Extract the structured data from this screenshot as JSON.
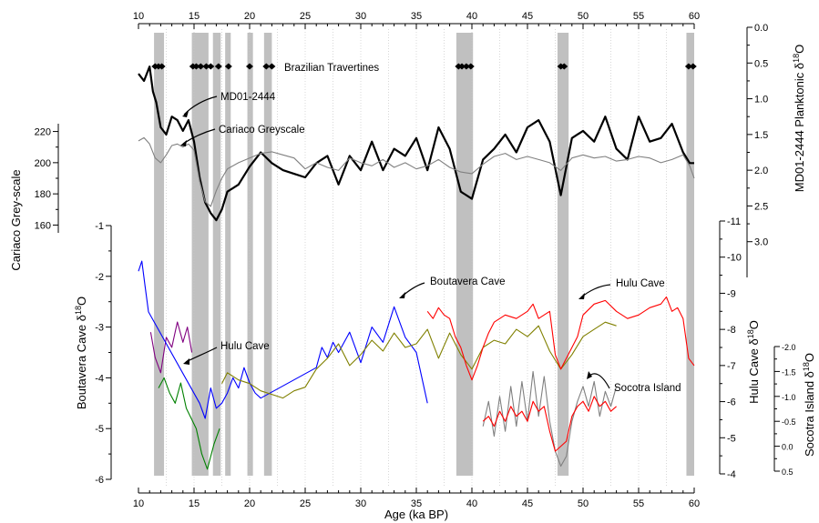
{
  "chart_data": {
    "type": "line",
    "x_axis": {
      "label": "Age (ka BP)",
      "range": [
        10,
        60
      ],
      "ticks": [
        "10",
        "15",
        "20",
        "25",
        "30",
        "35",
        "40",
        "45",
        "50",
        "55",
        "60"
      ]
    },
    "shaded_intervals": [
      [
        11.4,
        12.3
      ],
      [
        14.8,
        16.3
      ],
      [
        16.7,
        17.4
      ],
      [
        17.8,
        18.3
      ],
      [
        19.8,
        20.3
      ],
      [
        21.3,
        22.0
      ],
      [
        38.6,
        40.1
      ],
      [
        47.7,
        48.7
      ],
      [
        59.3,
        60.0
      ]
    ],
    "axes": {
      "cariaco": {
        "label": "Cariaco Grey-scale",
        "range": [
          155,
          225
        ],
        "ticks": [
          "160",
          "180",
          "200",
          "220"
        ]
      },
      "md01": {
        "label": "MD01-2444 Planktonic δ18O",
        "label_main": "MD01-2444 Planktonic δ",
        "label_sup": "18",
        "label_tail": "O",
        "range": [
          0.0,
          3.5
        ],
        "reversed": true,
        "ticks": [
          "0.0",
          "0.5",
          "1.0",
          "1.5",
          "2.0",
          "2.5",
          "3.0"
        ]
      },
      "boutavera": {
        "label": "Boutavera Cave δ18O",
        "label_main": "Boutavera Cave δ",
        "label_sup": "18",
        "label_tail": "O",
        "range": [
          -6,
          -1
        ],
        "ticks": [
          "-1",
          "-2",
          "-3",
          "-4",
          "-5",
          "-6"
        ]
      },
      "hulu": {
        "label": "Hulu Cave δ18O",
        "label_main": "Hulu Cave δ",
        "label_sup": "18",
        "label_tail": "O",
        "range": [
          -11,
          -4
        ],
        "reversed": true,
        "ticks": [
          "-11",
          "-10",
          "-9",
          "-8",
          "-7",
          "-6",
          "-5",
          "-4"
        ]
      },
      "socotra": {
        "label": "Socotra Island δ18O",
        "label_main": "Socotra Island δ",
        "label_sup": "18",
        "label_tail": "O",
        "range": [
          -2.0,
          0.5
        ],
        "reversed": true,
        "ticks": [
          "-2.0",
          "-1.5",
          "-1.0",
          "-0.5",
          "0.0",
          "0.5"
        ]
      }
    },
    "series": [
      {
        "name": "MD01-2444",
        "color": "#000000",
        "axis": "md01",
        "x": [
          10,
          10.5,
          11,
          11.3,
          11.6,
          12,
          12.5,
          13,
          13.5,
          14,
          14.5,
          15,
          15.5,
          16,
          16.5,
          17,
          17.5,
          18,
          19,
          20,
          21,
          22,
          23,
          24,
          25,
          26,
          27,
          28,
          29,
          30,
          31,
          32,
          33,
          34,
          35,
          36,
          37,
          38,
          39,
          40,
          41,
          42,
          43,
          44,
          45,
          46,
          47,
          48,
          49,
          50,
          51,
          52,
          53,
          54,
          55,
          56,
          57,
          58,
          59,
          59.6,
          60
        ],
        "values": [
          0.65,
          0.75,
          0.55,
          0.9,
          1.05,
          1.4,
          1.5,
          1.25,
          1.3,
          1.45,
          1.3,
          1.6,
          2.1,
          2.45,
          2.6,
          2.7,
          2.55,
          2.3,
          2.2,
          1.95,
          1.75,
          1.9,
          2.0,
          2.05,
          2.1,
          1.9,
          1.8,
          2.2,
          1.8,
          2.0,
          1.6,
          2.0,
          1.7,
          1.8,
          1.55,
          2.0,
          1.4,
          1.7,
          2.3,
          2.4,
          1.85,
          1.7,
          1.5,
          1.75,
          1.4,
          1.3,
          1.6,
          2.35,
          1.55,
          1.45,
          1.6,
          1.25,
          1.7,
          1.85,
          1.25,
          1.6,
          1.55,
          1.35,
          1.75,
          1.9,
          1.9
        ]
      },
      {
        "name": "Cariaco Greyscale",
        "color": "#808080",
        "axis": "cariaco",
        "x": [
          10,
          10.5,
          11,
          11.5,
          12,
          12.5,
          13,
          13.5,
          14,
          14.5,
          15,
          15.5,
          16,
          16.5,
          17,
          17.5,
          18,
          19,
          20,
          21,
          22,
          23,
          24,
          25,
          26,
          27,
          28,
          29,
          30,
          31,
          32,
          33,
          34,
          35,
          36,
          37,
          38,
          39,
          40,
          41,
          42,
          43,
          44,
          45,
          46,
          47,
          48,
          49,
          50,
          51,
          52,
          53,
          54,
          55,
          56,
          57,
          58,
          59,
          59.6,
          60
        ],
        "values": [
          214,
          216,
          212,
          203,
          200,
          205,
          211,
          212,
          210,
          212,
          208,
          188,
          175,
          172,
          182,
          190,
          196,
          200,
          203,
          206,
          207,
          205,
          203,
          196,
          200,
          197,
          195,
          203,
          200,
          198,
          202,
          197,
          200,
          196,
          198,
          202,
          197,
          194,
          193,
          199,
          204,
          206,
          202,
          204,
          202,
          200,
          195,
          203,
          205,
          203,
          204,
          201,
          202,
          204,
          203,
          200,
          202,
          205,
          198,
          190
        ]
      },
      {
        "name": "Boutavera Cave",
        "color": "#800080",
        "axis": "boutavera",
        "x": [
          11.1,
          11.5,
          12,
          12.5,
          13,
          13.5,
          14,
          14.4,
          14.8
        ],
        "values": [
          -3.1,
          -3.6,
          -3.9,
          -3.2,
          -3.4,
          -2.9,
          -3.3,
          -3.0,
          -3.5
        ]
      },
      {
        "name": "Boutavera Cave",
        "color": "#0000ff",
        "axis": "boutavera",
        "x": [
          10,
          10.3,
          10.6,
          10.9,
          15.5,
          16,
          16.5,
          17,
          17.5,
          18,
          18.5,
          19,
          19.5,
          20,
          20.5,
          21,
          26,
          26.5,
          27,
          27.5,
          28,
          29,
          30,
          31,
          32,
          33,
          34,
          35,
          36
        ],
        "values": [
          -1.9,
          -1.7,
          -2.2,
          -2.7,
          -4.5,
          -4.8,
          -4.2,
          -4.6,
          -4.5,
          -4.3,
          -4.0,
          -4.2,
          -3.8,
          -4.1,
          -4.3,
          -4.4,
          -3.8,
          -3.4,
          -3.6,
          -3.3,
          -3.5,
          -3.1,
          -3.7,
          -3.0,
          -3.3,
          -2.6,
          -3.2,
          -3.5,
          -4.5
        ]
      },
      {
        "name": "Boutavera Cave",
        "color": "#008000",
        "axis": "boutavera",
        "x": [
          11.8,
          12.3,
          12.8,
          13.3,
          13.8,
          14.3,
          15.2,
          15.7,
          16.2,
          16.8,
          17.3
        ],
        "values": [
          -4.2,
          -4.0,
          -4.3,
          -4.5,
          -4.1,
          -4.6,
          -5.0,
          -5.5,
          -5.8,
          -5.3,
          -5.0
        ]
      },
      {
        "name": "Hulu Cave",
        "color": "#808000",
        "axis": "hulu",
        "x": [
          17.5,
          18,
          19,
          20,
          21,
          22,
          23,
          24,
          25,
          26,
          27,
          28,
          29,
          30,
          31,
          32,
          33,
          34,
          35,
          36,
          37,
          38,
          39,
          40,
          41,
          42,
          43,
          44,
          45,
          46,
          47,
          48,
          49,
          50,
          51,
          52,
          53
        ],
        "values": [
          -6.5,
          -6.8,
          -6.6,
          -6.5,
          -6.3,
          -6.2,
          -6.1,
          -6.3,
          -6.4,
          -6.9,
          -7.2,
          -7.6,
          -7.0,
          -7.3,
          -7.7,
          -7.4,
          -7.9,
          -7.5,
          -7.6,
          -8.0,
          -7.2,
          -7.9,
          -7.3,
          -6.9,
          -7.5,
          -7.7,
          -7.6,
          -8.0,
          -7.8,
          -8.1,
          -7.4,
          -6.9,
          -7.3,
          -7.8,
          -8.0,
          -8.2,
          -8.1
        ]
      },
      {
        "name": "Hulu Cave",
        "color": "#ff0000",
        "axis": "hulu",
        "x": [
          36,
          36.5,
          37,
          37.5,
          38,
          38.5,
          39,
          39.5,
          40,
          40.5,
          41,
          41.5,
          42,
          43,
          44,
          45,
          45.5,
          46,
          47,
          47.5,
          48,
          48.5,
          49,
          49.5,
          50,
          51,
          52,
          53,
          54,
          55,
          56,
          57,
          57.5,
          58,
          58.5,
          59,
          59.5,
          60
        ],
        "values": [
          -8.5,
          -8.3,
          -8.6,
          -8.4,
          -8.3,
          -7.8,
          -7.5,
          -7.0,
          -6.6,
          -7.0,
          -7.5,
          -7.9,
          -8.2,
          -8.4,
          -8.3,
          -8.5,
          -8.7,
          -8.3,
          -8.5,
          -7.3,
          -6.9,
          -7.2,
          -7.5,
          -7.8,
          -8.4,
          -8.7,
          -8.8,
          -8.5,
          -8.3,
          -8.4,
          -8.6,
          -8.7,
          -8.9,
          -8.5,
          -8.6,
          -8.3,
          -7.2,
          -7.0
        ]
      },
      {
        "name": "Socotra Island",
        "color": "#808080",
        "axis": "socotra",
        "x": [
          41,
          41.5,
          42,
          42.5,
          43,
          43.5,
          44,
          44.5,
          45,
          45.5,
          46,
          46.5,
          47,
          47.5,
          48,
          48.5,
          49,
          49.5,
          50,
          50.5,
          51,
          51.5,
          52,
          52.5,
          53
        ],
        "values": [
          -0.4,
          -0.9,
          -0.2,
          -1.0,
          -0.3,
          -1.2,
          -0.4,
          -1.3,
          -0.5,
          -1.5,
          -0.6,
          -1.4,
          -0.5,
          0.1,
          0.4,
          0.2,
          -0.5,
          -0.9,
          -1.2,
          -0.8,
          -1.3,
          -0.6,
          -1.1,
          -0.8,
          -1.2
        ]
      },
      {
        "name": "Socotra Island",
        "color": "#ff0000",
        "axis": "socotra",
        "x": [
          41,
          41.5,
          42,
          42.5,
          43,
          43.5,
          44,
          44.5,
          45,
          45.5,
          46,
          46.5,
          47,
          47.5,
          48,
          48.5,
          49,
          49.5,
          50,
          50.5,
          51,
          51.5,
          52,
          52.5,
          53
        ],
        "values": [
          -0.5,
          -0.6,
          -0.4,
          -0.7,
          -0.5,
          -0.8,
          -0.6,
          -0.7,
          -0.5,
          -0.9,
          -0.7,
          -0.8,
          -0.3,
          0.1,
          0.0,
          -0.1,
          -0.6,
          -0.8,
          -0.9,
          -0.7,
          -1.0,
          -0.8,
          -0.9,
          -0.7,
          -0.8
        ]
      }
    ],
    "travertines": {
      "label": "Brazilian Travertines",
      "x": [
        11.5,
        11.8,
        12.1,
        14.9,
        15.2,
        15.6,
        16.1,
        16.5,
        17.2,
        18.1,
        20.0,
        21.5,
        22.0,
        38.8,
        39.1,
        39.5,
        39.9,
        48.0,
        48.3,
        59.5,
        59.9
      ]
    },
    "annotations": [
      {
        "text": "MD01-2444"
      },
      {
        "text": "Cariaco Greyscale"
      },
      {
        "text": "Boutavera Cave"
      },
      {
        "text": "Hulu Cave"
      },
      {
        "text": "Hulu Cave"
      },
      {
        "text": "Socotra Island"
      }
    ]
  }
}
